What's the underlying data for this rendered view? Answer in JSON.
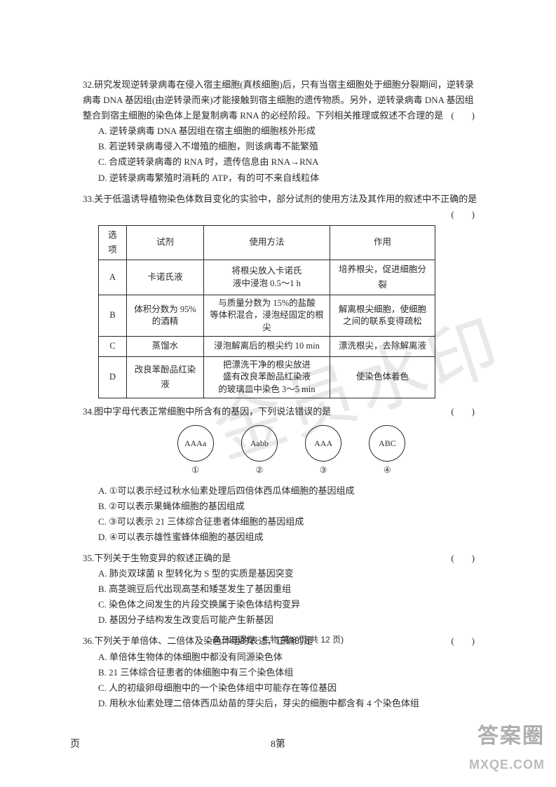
{
  "watermark_main": "金员水印",
  "q32": {
    "num": "32.",
    "text": "研究发现逆转录病毒在侵入宿主细胞(真核细胞)后，只有当宿主细胞处于细胞分裂期间，逆转录病毒 DNA 基因组(由逆转录而来)才能接触到宿主细胞的遗传物质。另外，逆转录病毒 DNA 基因组整合到宿主细胞的染色体上是复制病毒 RNA 的必经阶段。下列相关推理或叙述不合理的是",
    "paren": "(　)",
    "opts": {
      "A": "A. 逆转录病毒 DNA 基因组在宿主细胞的细胞核外形成",
      "B": "B. 若逆转录病毒侵入不增殖的细胞，则该病毒不能繁殖",
      "C": "C. 合成逆转录病毒的 RNA 时，遗传信息由 RNA→RNA",
      "D": "D. 逆转录病毒繁殖时消耗的 ATP，有的可不来自线粒体"
    }
  },
  "q33": {
    "num": "33.",
    "text": "关于低温诱导植物染色体数目变化的实验中，部分试剂的使用方法及其作用的叙述中不正确的是",
    "paren": "(　)",
    "table": {
      "headers": [
        "选项",
        "试剂",
        "使用方法",
        "作用"
      ],
      "rows": [
        [
          "A",
          "卡诺氏液",
          "将根尖放入卡诺氏\n液中浸泡 0.5～1 h",
          "培养根尖，促进细胞分裂"
        ],
        [
          "B",
          "体积分数为 95%\n的酒精",
          "与质量分数为 15%的盐酸\n等体积混合，浸泡经固定的根尖",
          "解离根尖细胞，使细胞\n之间的联系变得疏松"
        ],
        [
          "C",
          "蒸馏水",
          "浸泡解离后的根尖约 10 min",
          "漂洗根尖，去除解离液"
        ],
        [
          "D",
          "改良苯酚品红染液",
          "把漂洗干净的根尖放进\n盛有改良苯酚品红染液\n的玻璃皿中染色 3～5 min",
          "使染色体着色"
        ]
      ],
      "col_widths": [
        "40px",
        "110px",
        "180px",
        "150px"
      ]
    }
  },
  "q34": {
    "num": "34.",
    "text": "图中字母代表正常细胞中所含有的基因，下列说法错误的是",
    "paren": "(　)",
    "circles": [
      {
        "label": "AAAa",
        "num": "①"
      },
      {
        "label": "Aabb",
        "num": "②"
      },
      {
        "label": "AAA",
        "num": "③"
      },
      {
        "label": "ABC",
        "num": "④"
      }
    ],
    "opts": {
      "A": "A. ①可以表示经过秋水仙素处理后四倍体西瓜体细胞的基因组成",
      "B": "B. ②可以表示果蝇体细胞的基因组成",
      "C": "C. ③可以表示 21 三体综合征患者体细胞的基因组成",
      "D": "D. ④可以表示雄性蜜蜂体细胞的基因组成"
    }
  },
  "q35": {
    "num": "35.",
    "text": "下列关于生物变异的叙述正确的是",
    "paren": "(　)",
    "opts": {
      "A": "A. 肺炎双球菌 R 型转化为 S 型的实质是基因突变",
      "B": "B. 高茎豌豆后代出现高茎和矮茎发生了基因重组",
      "C": "C. 染色体之间发生的片段交换属于染色体结构变异",
      "D": "D. 基因分子结构发生改变后可能产生新基因"
    }
  },
  "q36": {
    "num": "36.",
    "text": "下列关于单倍体、二倍体及染色体组的表述，正确的是",
    "paren": "(　)",
    "opts": {
      "A": "A. 单倍体生物体的体细胞中都没有同源染色体",
      "B": "B. 21 三体综合征患者的体细胞中有三个染色体组",
      "C": "C. 人的初级卵母细胞中的一个染色体组中可能存在等位基因",
      "D": "D. 用秋水仙素处理二倍体西瓜幼苗的芽尖后，芽尖的细胞中都含有 4 个染色体组"
    }
  },
  "footer_center": "高三四调卷 · 生物 第 8 页(共 12 页)",
  "page_bottom": {
    "left": "页",
    "center": "8第"
  },
  "corner_wm": {
    "l1": "答案圈",
    "l2": "MXQE.COM"
  }
}
